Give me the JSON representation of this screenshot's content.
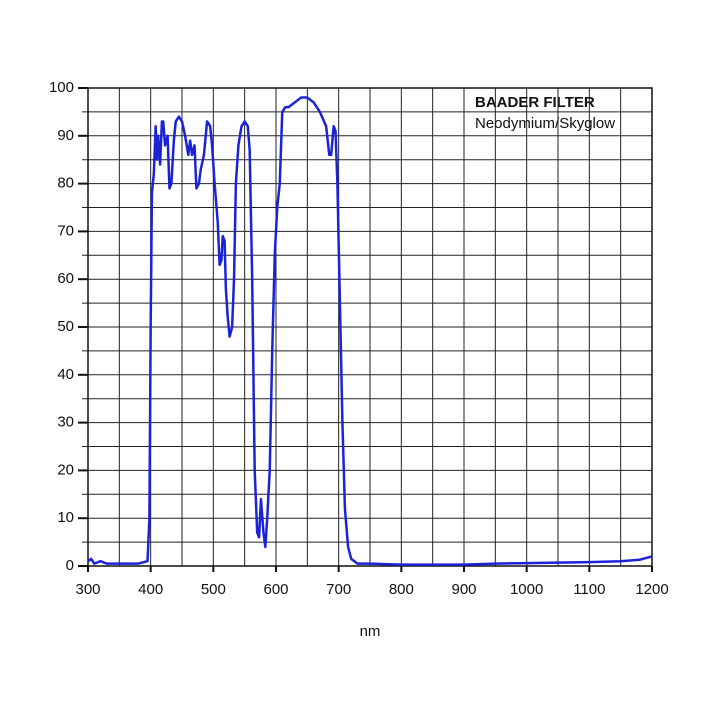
{
  "chart_data": {
    "type": "line",
    "title": "BAADER FILTER",
    "subtitle": "Neodymium/Skyglow",
    "x_label": "nm",
    "xlim": [
      300,
      1200
    ],
    "ylim": [
      0,
      100
    ],
    "xticks": [
      300,
      400,
      500,
      600,
      700,
      800,
      900,
      1000,
      1100,
      1200
    ],
    "yticks": [
      0,
      10,
      20,
      30,
      40,
      50,
      60,
      70,
      80,
      90,
      100
    ],
    "xgrid": [
      300,
      350,
      400,
      450,
      500,
      550,
      600,
      650,
      700,
      750,
      800,
      850,
      900,
      950,
      1000,
      1050,
      1100,
      1150,
      1200
    ],
    "ygrid": [
      0,
      5,
      10,
      15,
      20,
      25,
      30,
      35,
      40,
      45,
      50,
      55,
      60,
      65,
      70,
      75,
      80,
      85,
      90,
      95,
      100
    ],
    "grid": true,
    "series": [
      {
        "color": "#1c22d8",
        "x": [
          300,
          305,
          310,
          320,
          330,
          350,
          380,
          395,
          398,
          400,
          402,
          405,
          408,
          410,
          412,
          415,
          418,
          420,
          423,
          427,
          430,
          433,
          437,
          440,
          445,
          450,
          455,
          460,
          463,
          466,
          470,
          473,
          477,
          480,
          485,
          490,
          495,
          498,
          502,
          507,
          510,
          513,
          515,
          518,
          520,
          523,
          526,
          530,
          533,
          536,
          540,
          545,
          550,
          555,
          558,
          562,
          566,
          570,
          573,
          576,
          580,
          583,
          586,
          590,
          594,
          598,
          602,
          606,
          610,
          615,
          620,
          630,
          640,
          650,
          660,
          670,
          680,
          685,
          688,
          692,
          695,
          698,
          702,
          706,
          710,
          715,
          720,
          730,
          750,
          800,
          850,
          900,
          950,
          1000,
          1050,
          1100,
          1150,
          1180,
          1200
        ],
        "values": [
          1,
          1.5,
          0.5,
          1,
          0.5,
          0.5,
          0.5,
          1,
          10,
          50,
          78,
          82,
          92,
          85,
          90,
          84,
          93,
          93,
          88,
          90,
          79,
          80,
          89,
          93,
          94,
          93,
          90,
          86,
          89,
          86,
          88,
          79,
          80,
          83,
          86,
          93,
          92,
          88,
          80,
          72,
          63,
          64,
          69,
          68,
          58,
          52,
          48,
          50,
          60,
          80,
          88,
          92,
          93,
          92,
          87,
          60,
          20,
          7,
          6,
          14,
          7,
          4,
          10,
          20,
          45,
          65,
          75,
          80,
          95,
          96,
          96,
          97,
          98,
          98,
          97,
          95,
          92,
          86,
          86,
          92,
          91,
          80,
          55,
          30,
          12,
          4,
          1.5,
          0.5,
          0.5,
          0.3,
          0.3,
          0.3,
          0.5,
          0.6,
          0.7,
          0.8,
          1,
          1.3,
          2
        ]
      }
    ]
  }
}
